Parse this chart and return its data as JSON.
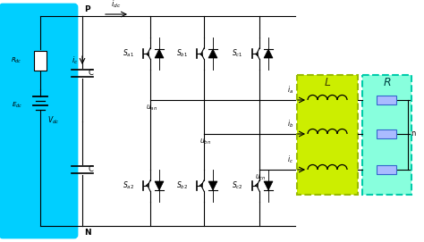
{
  "bg_color": "#ffffff",
  "dc_box_color": "#00cfff",
  "L_box_color": "#ccee00",
  "L_box_edge": "#99bb00",
  "R_box_color": "#88ffdd",
  "R_box_edge": "#00ccaa",
  "line_color": "#000000",
  "figsize": [
    4.74,
    2.71
  ],
  "dpi": 100,
  "labels": {
    "P": "P",
    "N": "N",
    "idc": "$i_{dc}$",
    "ic": "$i_c$",
    "Rdc": "$R_{dc}$",
    "Edc": "$E_{dc}$",
    "Vdc": "$V_{dc}$",
    "C_top": "C",
    "C_bot": "C",
    "Sa1": "$S_{a1}$",
    "Sb1": "$S_{b1}$",
    "Sc1": "$S_{c1}$",
    "Sa2": "$S_{a2}$",
    "Sb2": "$S_{b2}$",
    "Sc2": "$S_{c2}$",
    "uan": "$u_{an}$",
    "ubn": "$u_{bn}$",
    "ucn": "$u_{cn}$",
    "ia": "$i_a$",
    "ib": "$i_b$",
    "ic2": "$i_c$",
    "L": "$L$",
    "R": "$R$",
    "n": "n"
  }
}
